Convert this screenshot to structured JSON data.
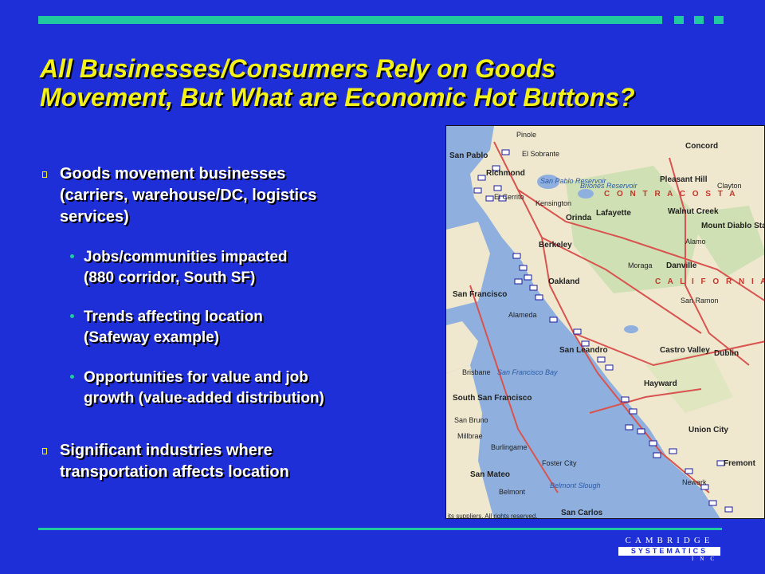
{
  "slide": {
    "title_lines": [
      "All Businesses/Consumers Rely on Goods",
      "Movement, But What are Economic Hot Buttons?"
    ],
    "bullets": [
      {
        "lines": [
          "Goods movement businesses",
          "(carriers, warehouse/DC, logistics",
          "services)"
        ],
        "sub": [
          {
            "lines": [
              "Jobs/communities impacted",
              "(880 corridor, South SF)"
            ]
          },
          {
            "lines": [
              "Trends affecting location",
              "(Safeway example)"
            ]
          },
          {
            "lines": [
              "Opportunities for value and job",
              "growth (value-added distribution)"
            ]
          }
        ]
      },
      {
        "lines": [
          "Significant industries where",
          "transportation affects location"
        ]
      }
    ]
  },
  "map": {
    "labels": {
      "pinole": "Pinole",
      "el_sobrante": "El Sobrante",
      "san_pablo": "San Pablo",
      "richmond": "Richmond",
      "el_cerrito": "El Cerrito",
      "san_pablo_reservoir": "San Pablo Reservoir",
      "briones_reservoir": "Briones Reservoir",
      "kensington": "Kensington",
      "orinda": "Orinda",
      "lafayette": "Lafayette",
      "walnut_creek": "Walnut Creek",
      "concord": "Concord",
      "pleasant_hill": "Pleasant Hill",
      "clayton": "Clayton",
      "contra_costa": "C O N T R A   C O S T A",
      "mount_diablo": "Mount Diablo State Park",
      "berkeley": "Berkeley",
      "oakland": "Oakland",
      "moraga": "Moraga",
      "danville": "Danville",
      "alamo": "Alamo",
      "california": "C A L I F O R N I A",
      "san_francisco": "San Francisco",
      "alameda": "Alameda",
      "san_ramon": "San Ramon",
      "san_leandro": "San Leandro",
      "castro_valley": "Castro Valley",
      "dublin": "Dublin",
      "san_francisco_bay": "San Francisco Bay",
      "brisbane": "Brisbane",
      "south_san_francisco": "South San Francisco",
      "hayward": "Hayward",
      "san_bruno": "San Bruno",
      "millbrae": "Millbrae",
      "union_city": "Union City",
      "burlingame": "Burlingame",
      "foster_city": "Foster City",
      "san_mateo": "San Mateo",
      "fremont": "Fremont",
      "belmont": "Belmont",
      "belmont_slough": "Belmont Slough",
      "newark": "Newark",
      "san_carlos": "San Carlos",
      "credits": "its suppliers. All rights reserved."
    }
  },
  "logo": {
    "top": "CAMBRIDGE",
    "middle": "SYSTEMATICS",
    "bottom": "INC"
  },
  "colors": {
    "background": "#1f2fd8",
    "title": "#f2f21a",
    "accent": "#20c9a0",
    "text": "#ffffff"
  }
}
